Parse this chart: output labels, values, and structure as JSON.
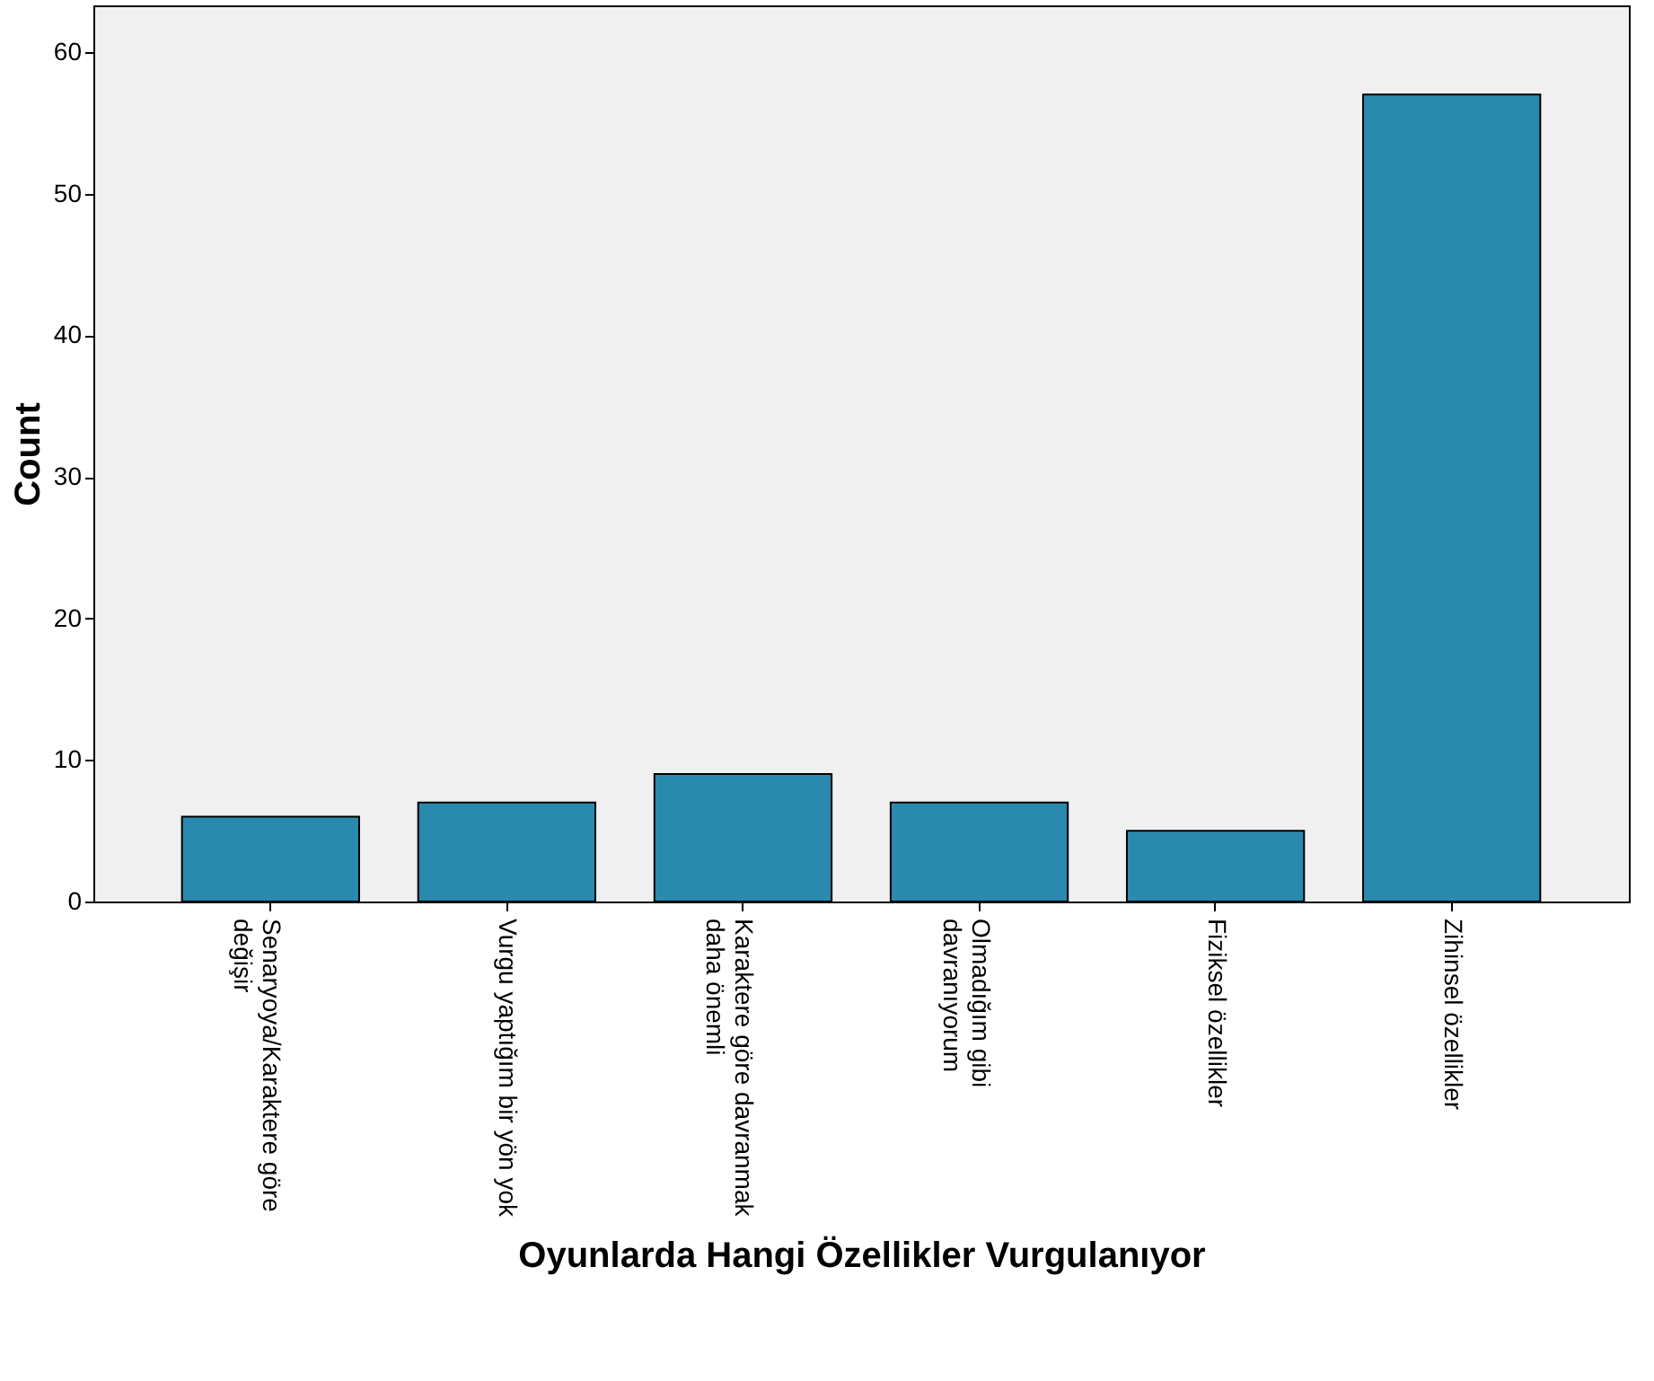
{
  "chart_data": {
    "type": "bar",
    "xlabel": "Oyunlarda Hangi Özellikler Vurgulanıyor",
    "ylabel": "Count",
    "categories": [
      "Senaryoya/Karaktere göre değişir",
      "Vurgu yaptığım bir yön yok",
      "Karaktere göre davranmak daha önemli",
      "Olmadığım gibi davranıyorum",
      "Fiziksel özellikler",
      "Zihinsel özellikler"
    ],
    "values": [
      6,
      7,
      9,
      7,
      5,
      57
    ],
    "color": "#2a8aad",
    "ylim": [
      0,
      63.3
    ],
    "yticks": [
      0,
      10,
      20,
      30,
      40,
      50,
      60
    ],
    "grid": false
  }
}
